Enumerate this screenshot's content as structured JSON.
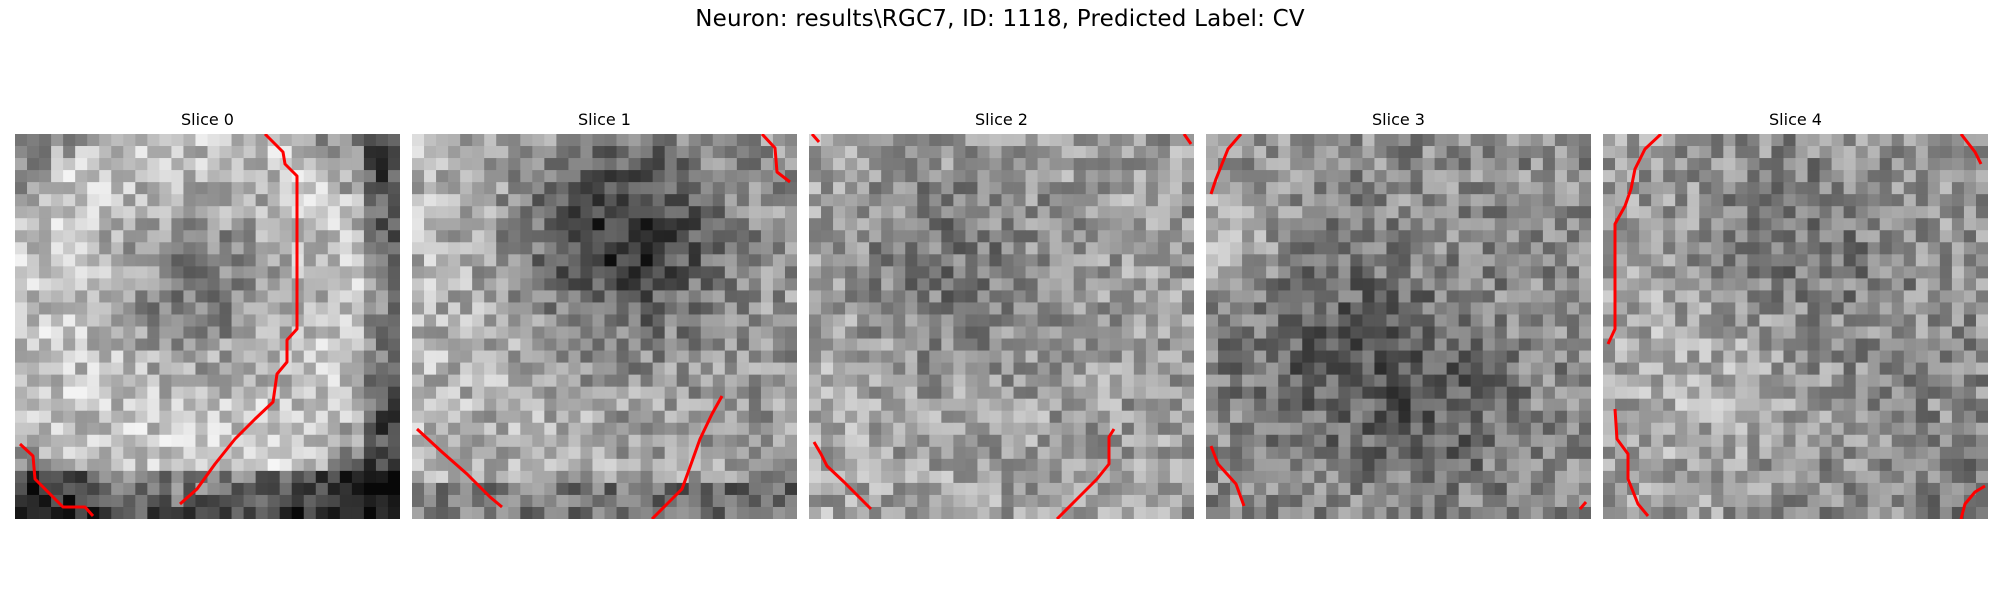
{
  "figure": {
    "title": "Neuron: results\\RGC7, ID: 1118, Predicted Label: CV"
  },
  "slices": [
    {
      "title": "Slice 0"
    },
    {
      "title": "Slice 1"
    },
    {
      "title": "Slice 2"
    },
    {
      "title": "Slice 3"
    },
    {
      "title": "Slice 4"
    }
  ],
  "colors": {
    "contour": "#ff0000",
    "background": "#ffffff"
  }
}
